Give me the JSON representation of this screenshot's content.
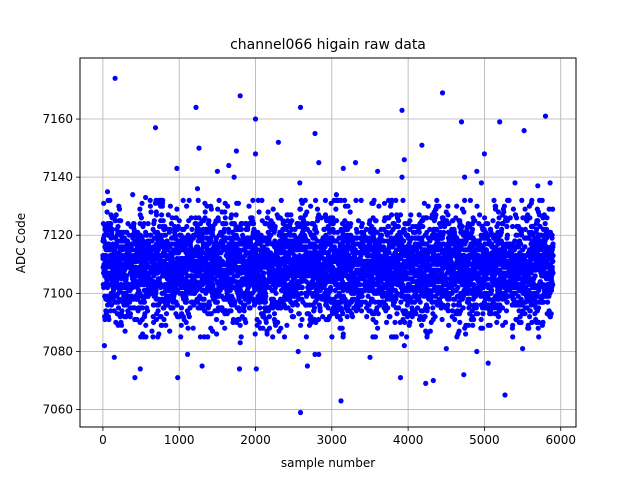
{
  "chart_data": {
    "type": "scatter",
    "title": "channel066 higain raw data",
    "xlabel": "sample number",
    "ylabel": "ADC Code",
    "xlim": [
      -300,
      6200
    ],
    "ylim": [
      7054,
      7181
    ],
    "xticks": [
      0,
      1000,
      2000,
      3000,
      4000,
      5000,
      6000
    ],
    "yticks": [
      7060,
      7080,
      7100,
      7120,
      7140,
      7160
    ],
    "grid": true,
    "color": "#0000ff",
    "n_points": 5900,
    "core_band": {
      "x_range": [
        0,
        5900
      ],
      "y_mean": 7109,
      "y_std": 9
    },
    "outliers": [
      {
        "x": 160,
        "y": 7174
      },
      {
        "x": 1800,
        "y": 7168
      },
      {
        "x": 4450,
        "y": 7169
      },
      {
        "x": 5800,
        "y": 7161
      },
      {
        "x": 3920,
        "y": 7163
      },
      {
        "x": 2590,
        "y": 7164
      },
      {
        "x": 1220,
        "y": 7164
      },
      {
        "x": 2000,
        "y": 7160
      },
      {
        "x": 4700,
        "y": 7159
      },
      {
        "x": 5200,
        "y": 7159
      },
      {
        "x": 690,
        "y": 7157
      },
      {
        "x": 5520,
        "y": 7156
      },
      {
        "x": 2780,
        "y": 7155
      },
      {
        "x": 2300,
        "y": 7152
      },
      {
        "x": 4180,
        "y": 7151
      },
      {
        "x": 1260,
        "y": 7150
      },
      {
        "x": 1750,
        "y": 7149
      },
      {
        "x": 2000,
        "y": 7148
      },
      {
        "x": 5000,
        "y": 7148
      },
      {
        "x": 3950,
        "y": 7146
      },
      {
        "x": 2830,
        "y": 7145
      },
      {
        "x": 3310,
        "y": 7145
      },
      {
        "x": 1650,
        "y": 7144
      },
      {
        "x": 970,
        "y": 7143
      },
      {
        "x": 3150,
        "y": 7143
      },
      {
        "x": 3600,
        "y": 7142
      },
      {
        "x": 4900,
        "y": 7142
      },
      {
        "x": 1500,
        "y": 7142
      },
      {
        "x": 1720,
        "y": 7140
      },
      {
        "x": 4740,
        "y": 7140
      },
      {
        "x": 3920,
        "y": 7140
      },
      {
        "x": 5400,
        "y": 7138
      },
      {
        "x": 5860,
        "y": 7138
      },
      {
        "x": 2580,
        "y": 7138
      },
      {
        "x": 5700,
        "y": 7137
      },
      {
        "x": 1240,
        "y": 7136
      },
      {
        "x": 60,
        "y": 7135
      },
      {
        "x": 3060,
        "y": 7134
      },
      {
        "x": 390,
        "y": 7134
      },
      {
        "x": 560,
        "y": 7133
      },
      {
        "x": 4960,
        "y": 7138
      },
      {
        "x": 2590,
        "y": 7059
      },
      {
        "x": 3120,
        "y": 7063
      },
      {
        "x": 5270,
        "y": 7065
      },
      {
        "x": 4230,
        "y": 7069
      },
      {
        "x": 420,
        "y": 7071
      },
      {
        "x": 980,
        "y": 7071
      },
      {
        "x": 3900,
        "y": 7071
      },
      {
        "x": 4730,
        "y": 7072
      },
      {
        "x": 4330,
        "y": 7070
      },
      {
        "x": 490,
        "y": 7074
      },
      {
        "x": 1300,
        "y": 7075
      },
      {
        "x": 1790,
        "y": 7074
      },
      {
        "x": 2010,
        "y": 7074
      },
      {
        "x": 2680,
        "y": 7075
      },
      {
        "x": 5050,
        "y": 7076
      },
      {
        "x": 150,
        "y": 7078
      },
      {
        "x": 1110,
        "y": 7079
      },
      {
        "x": 2830,
        "y": 7079
      },
      {
        "x": 3500,
        "y": 7078
      },
      {
        "x": 2560,
        "y": 7080
      },
      {
        "x": 5500,
        "y": 7081
      },
      {
        "x": 4500,
        "y": 7081
      },
      {
        "x": 2780,
        "y": 7079
      },
      {
        "x": 3950,
        "y": 7082
      },
      {
        "x": 20,
        "y": 7082
      },
      {
        "x": 1800,
        "y": 7083
      },
      {
        "x": 4900,
        "y": 7080
      }
    ]
  }
}
